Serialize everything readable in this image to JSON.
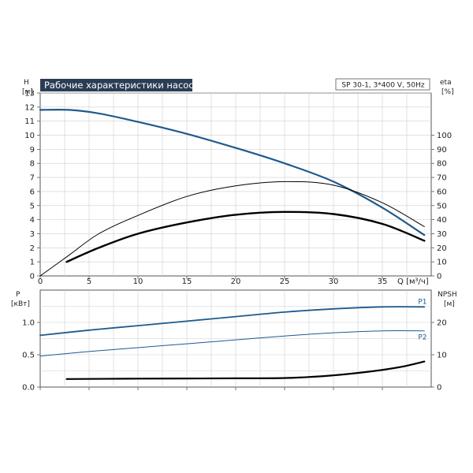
{
  "chart_data": [
    {
      "type": "line",
      "title": "Рабочие характеристики насоса",
      "info": "SP 30-1, 3*400 V, 50Hz",
      "left_axis": {
        "label": "H",
        "unit": "[м]",
        "min": 0,
        "max": 13,
        "ticks": [
          0,
          1,
          2,
          3,
          4,
          5,
          6,
          7,
          8,
          9,
          10,
          11,
          12,
          13
        ]
      },
      "right_axis": {
        "label": "eta",
        "unit": "[%]",
        "min": 0,
        "max": 130,
        "ticks": [
          0,
          10,
          20,
          30,
          40,
          50,
          60,
          70,
          80,
          90,
          100
        ]
      },
      "x_axis": {
        "label": "Q",
        "unit": "[м³/ч]",
        "min": 0,
        "max": 40,
        "tick_labels": [
          0,
          5,
          10,
          15,
          20,
          25,
          30,
          35
        ]
      },
      "grid": true,
      "series": [
        {
          "role": "H",
          "axis": "left",
          "color": "#1f5a8c",
          "x": [
            0,
            3,
            6,
            10,
            15,
            20,
            25,
            30,
            35,
            39.3
          ],
          "y": [
            11.8,
            11.8,
            11.55,
            10.95,
            10.1,
            9.1,
            8.0,
            6.7,
            4.85,
            2.9
          ]
        },
        {
          "role": "eta-thin",
          "axis": "right",
          "color": "#000000",
          "x": [
            0,
            3,
            6,
            10,
            15,
            20,
            25,
            30,
            35,
            39.3
          ],
          "y": [
            0,
            15,
            30,
            43,
            56.5,
            64,
            67,
            64.5,
            52,
            35
          ]
        },
        {
          "role": "eta-thick",
          "axis": "right",
          "color": "#000000",
          "x": [
            2.7,
            6,
            10,
            15,
            20,
            25,
            30,
            35,
            39.3
          ],
          "y": [
            10,
            20,
            30,
            38,
            43.5,
            45.5,
            44,
            37,
            25
          ]
        }
      ]
    },
    {
      "type": "line",
      "left_axis": {
        "label": "P",
        "unit": "[кВт]",
        "min": 0,
        "max": 1.5,
        "tick_labels": [
          "0.0",
          "0.5",
          "1.0"
        ]
      },
      "right_axis": {
        "label": "NPSH",
        "unit": "[м]",
        "min": 0,
        "max": 30,
        "tick_labels": [
          0,
          10,
          20
        ]
      },
      "x_axis": {
        "min": 0,
        "max": 40
      },
      "grid": true,
      "series": [
        {
          "name": "P1",
          "axis": "left",
          "color": "#1f5a8c",
          "x": [
            0,
            5,
            10,
            15,
            20,
            25,
            30,
            35,
            39.3
          ],
          "y": [
            0.8,
            0.88,
            0.95,
            1.02,
            1.09,
            1.16,
            1.21,
            1.24,
            1.24
          ]
        },
        {
          "name": "P2",
          "axis": "left",
          "color": "#1f5a8c",
          "x": [
            0,
            5,
            10,
            15,
            20,
            25,
            30,
            35,
            39.3
          ],
          "y": [
            0.48,
            0.55,
            0.61,
            0.67,
            0.73,
            0.79,
            0.84,
            0.87,
            0.87
          ]
        },
        {
          "role": "NPSH",
          "axis": "right",
          "color": "#000000",
          "x": [
            2.7,
            10,
            20,
            25,
            28,
            31,
            34,
            37,
            39.3
          ],
          "y": [
            2.5,
            2.6,
            2.7,
            2.8,
            3.2,
            3.9,
            4.9,
            6.3,
            7.9
          ]
        }
      ]
    }
  ]
}
